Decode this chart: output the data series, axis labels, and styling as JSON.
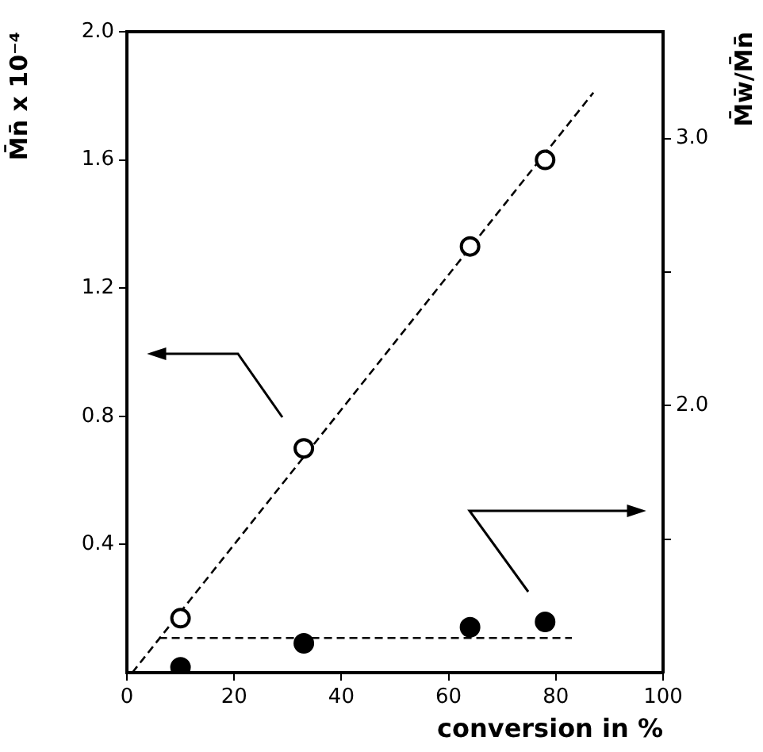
{
  "chart_data": {
    "type": "scatter",
    "xlabel": "conversion in %",
    "ylabel": "M̄n̄ x 10⁻⁴",
    "y2label": "M̄w̄/M̄n̄",
    "xlim": [
      0,
      100
    ],
    "xticks": [
      0,
      20,
      40,
      60,
      80,
      100
    ],
    "ylim": [
      0,
      2.0
    ],
    "yticks": [
      0.4,
      0.8,
      1.2,
      1.6,
      {
        "value": 2.0,
        "label": "2.0"
      }
    ],
    "y2lim": [
      1.0,
      3.4
    ],
    "y2ticks": [
      {
        "value": 1.5,
        "label": null
      },
      {
        "value": 2.0,
        "label": "2.0"
      },
      {
        "value": 2.5,
        "label": null
      },
      {
        "value": 3.0,
        "label": "3.0"
      }
    ],
    "grid": false,
    "legend": false,
    "marker": "circle",
    "series": [
      {
        "type": "scatter",
        "color": "#000000",
        "x": [
          10,
          33,
          64,
          78
        ],
        "values": [
          0.17,
          0.7,
          1.33,
          1.6
        ]
      },
      {
        "type": "scatter",
        "axis": "y2",
        "color": "#000000",
        "x": [
          10,
          33,
          64,
          78
        ],
        "values": [
          1.02,
          1.11,
          1.17,
          1.19
        ]
      },
      {
        "type": "line",
        "color": "#000000",
        "marker": "none",
        "line_style": "dashed",
        "x": [
          1,
          87
        ],
        "values": [
          0,
          1.81
        ]
      },
      {
        "type": "line",
        "axis": "y2",
        "color": "#000000",
        "marker": "none",
        "line_style": "dashed",
        "x": [
          6,
          83
        ],
        "values": [
          1.13,
          1.13
        ]
      }
    ]
  }
}
